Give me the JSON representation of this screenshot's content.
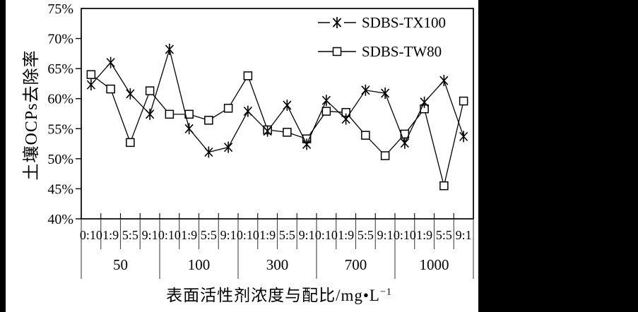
{
  "page": {
    "background": "#ffffff",
    "side_bar_color": "#000000",
    "ink_color": "#000000"
  },
  "chart": {
    "y_axis_title": "土壤OCPs去除率",
    "x_axis_title_main": "表面活性剂浓度与配比/mg•L",
    "x_axis_title_sup": "−1"
  },
  "chart_data": {
    "type": "line",
    "title": "",
    "ylabel": "土壤OCPs去除率",
    "xlabel": "表面活性剂浓度与配比/mg•L−1",
    "ylim": [
      40,
      75
    ],
    "ystep": 5,
    "ytick_labels": [
      "75%",
      "70%",
      "65%",
      "60%",
      "55%",
      "50%",
      "45%",
      "40%"
    ],
    "grid": false,
    "legend_position": "top-right",
    "categories": [
      "0:10",
      "1:9",
      "5:5",
      "9:1",
      "0:10",
      "1:9",
      "5:5",
      "9:1",
      "0:10",
      "1:9",
      "5:5",
      "9:1",
      "0:10",
      "1:9",
      "5:5",
      "9:1",
      "0:10",
      "1:9",
      "5:5",
      "9:1"
    ],
    "group_labels": [
      "50",
      "100",
      "300",
      "700",
      "1000"
    ],
    "columns_per_group": 4,
    "series": [
      {
        "name": "SDBS-TX100",
        "marker": "star",
        "values": [
          62.3,
          66.0,
          60.8,
          57.4,
          68.2,
          55.0,
          51.1,
          51.9,
          57.9,
          54.6,
          58.9,
          52.4,
          59.7,
          56.6,
          61.4,
          60.9,
          52.6,
          59.4,
          63.0,
          53.7
        ]
      },
      {
        "name": "SDBS-TW80",
        "marker": "square",
        "values": [
          64.0,
          61.6,
          52.7,
          61.3,
          57.4,
          57.4,
          56.4,
          58.4,
          63.8,
          54.8,
          54.4,
          53.3,
          57.9,
          57.7,
          53.9,
          50.5,
          54.1,
          58.3,
          45.5,
          59.6
        ]
      }
    ]
  }
}
